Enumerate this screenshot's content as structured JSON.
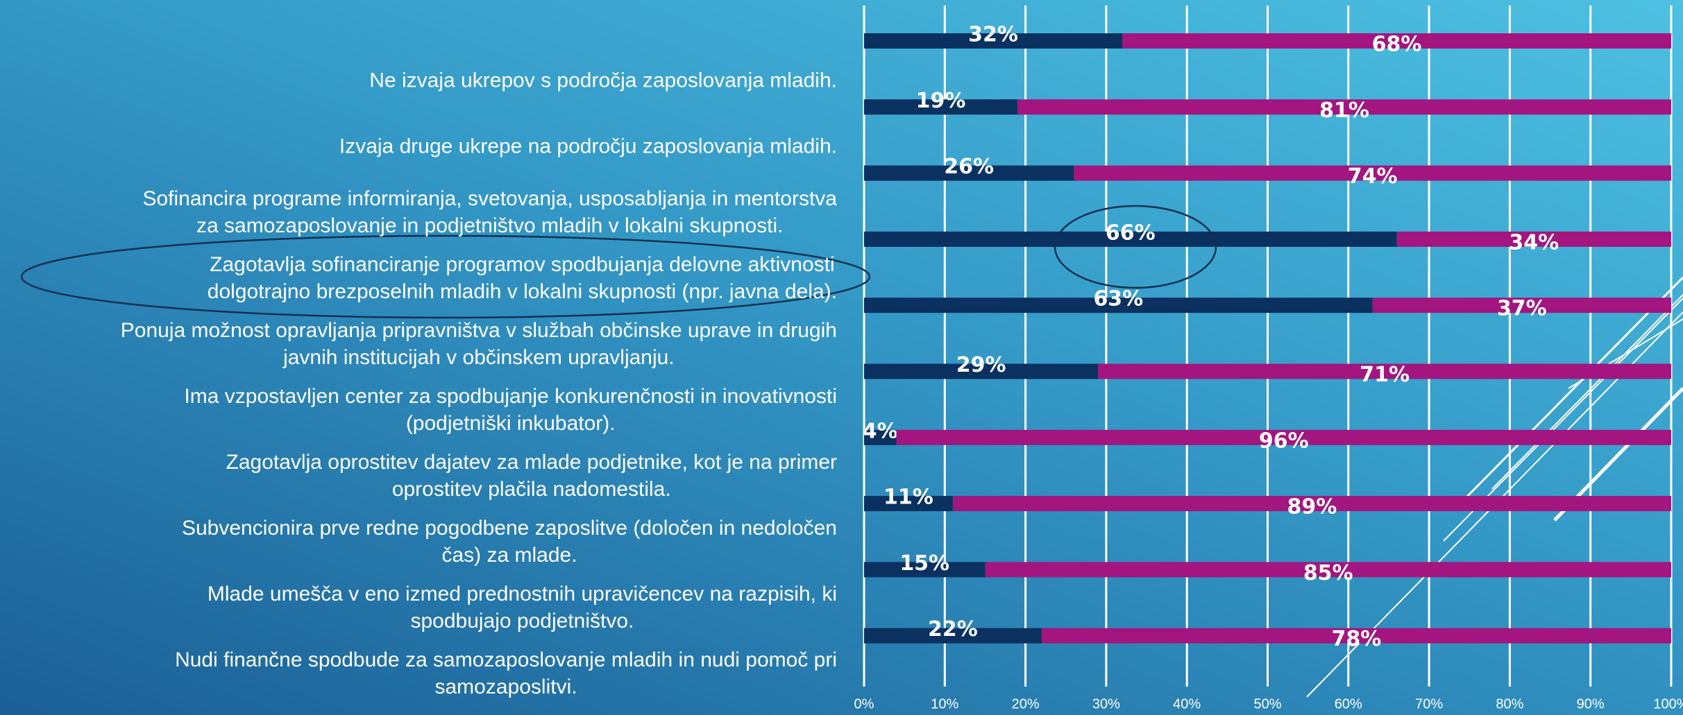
{
  "chart_data": {
    "type": "stacked-bar-horizontal",
    "categories": [
      [
        "Ne izvaja ukrepov s področja zaposlovanja mladih."
      ],
      [
        "Izvaja druge ukrepe na področju zaposlovanja mladih."
      ],
      [
        "Sofinancira programe informiranja, svetovanja, usposabljanja in mentorstva",
        "za samozaposlovanje in podjetništvo mladih v lokalni skupnosti."
      ],
      [
        "Zagotavlja sofinanciranje programov spodbujanja delovne aktivnosti",
        "dolgotrajno brezposelnih mladih v lokalni skupnosti (npr. javna dela)."
      ],
      [
        "Ponuja možnost opravljanja pripravništva v službah občinske uprave in drugih",
        "javnih institucijah v občinskem upravljanju."
      ],
      [
        "Ima vzpostavljen center za spodbujanje konkurenčnosti in inovativnosti",
        "(podjetniški inkubator)."
      ],
      [
        "Zagotavlja oprostitev dajatev za  mlade podjetnike, kot je na primer",
        "oprostitev plačila nadomestila."
      ],
      [
        "Subvencionira prve redne pogodbene zaposlitve (določen in nedoločen",
        "čas) za mlade."
      ],
      [
        "Mlade umešča v eno izmed prednostnih upravičencev na razpisih, ki",
        "spodbujajo podjetništvo."
      ],
      [
        "Nudi finančne spodbude za samozaposlovanje  mladih in nudi pomoč pri",
        "samozaposlitvi."
      ]
    ],
    "series": [
      {
        "color": "#0b3160",
        "values": [
          32,
          19,
          26,
          66,
          63,
          29,
          4,
          11,
          15,
          22
        ],
        "value_labels": [
          "32%",
          "19%",
          "26%",
          "66%",
          "63%",
          "29%",
          "4%",
          "11%",
          "15%",
          "22%"
        ]
      },
      {
        "color": "#a3157f",
        "values": [
          68,
          81,
          74,
          34,
          37,
          71,
          96,
          89,
          85,
          78
        ],
        "value_labels": [
          "68%",
          "81%",
          "74%",
          "34%",
          "37%",
          "71%",
          "96%",
          "89%",
          "85%",
          "78%"
        ]
      }
    ],
    "xlim": [
      0,
      100
    ],
    "xticks": [
      {
        "value": 0,
        "label": "0%"
      },
      {
        "value": 10,
        "label": "10%"
      },
      {
        "value": 20,
        "label": "20%"
      },
      {
        "value": 30,
        "label": "30%"
      },
      {
        "value": 40,
        "label": "40%"
      },
      {
        "value": 50,
        "label": "50%"
      },
      {
        "value": 60,
        "label": "60%"
      },
      {
        "value": 70,
        "label": "70%"
      },
      {
        "value": 80,
        "label": "80%"
      },
      {
        "value": 90,
        "label": "90%"
      },
      {
        "value": 100,
        "label": "100%"
      }
    ],
    "grid": true
  }
}
